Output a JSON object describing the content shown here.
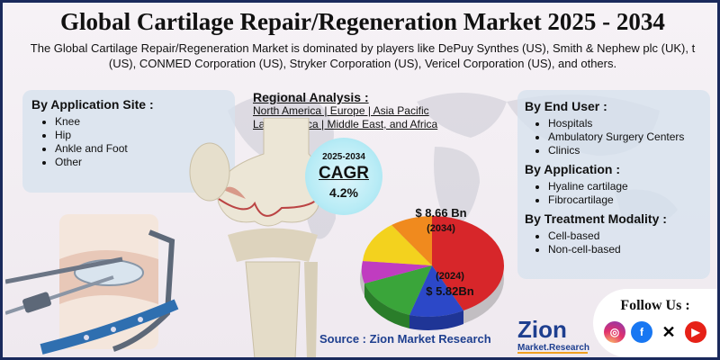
{
  "title": "Global Cartilage Repair/Regeneration Market 2025 - 2034",
  "subtitle": "The Global Cartilage Repair/Regeneration Market is dominated by players like DePuy Synthes (US), Smith & Nephew plc (UK), t (US), CONMED Corporation (US), Stryker Corporation (US), Vericel Corporation (US), and others.",
  "application_site": {
    "heading": "By Application Site :",
    "items": [
      "Knee",
      "Hip",
      "Ankle and Foot",
      "Other"
    ]
  },
  "regional": {
    "heading": "Regional Analysis :",
    "line1": "North America | Europe | Asia Pacific",
    "line2": "Latin America | Middle East, and Africa"
  },
  "cagr": {
    "years": "2025-2034",
    "label": "CAGR",
    "value": "4.2%"
  },
  "market_value": {
    "high": {
      "value": "$ 8.66 Bn",
      "year": "(2034)"
    },
    "low": {
      "year": "(2024)",
      "value": "$ 5.82Bn"
    }
  },
  "end_user": {
    "heading": "By End User :",
    "items": [
      "Hospitals",
      "Ambulatory Surgery Centers",
      "Clinics"
    ]
  },
  "application": {
    "heading": "By Application :",
    "items": [
      "Hyaline cartilage",
      "Fibrocartilage"
    ]
  },
  "treatment": {
    "heading": "By Treatment Modality :",
    "items": [
      "Cell-based",
      "Non-cell-based"
    ]
  },
  "source": "Source : Zion Market Research",
  "logo": {
    "name": "Zion",
    "sub": "Market.Research"
  },
  "follow": {
    "heading": "Follow Us :",
    "icons": [
      "instagram-icon",
      "facebook-icon",
      "x-icon",
      "youtube-icon"
    ]
  },
  "colors": {
    "border": "#1a2a5c",
    "panel": "#d6e2ee",
    "source": "#1e3f8f",
    "pie": [
      "#d7262a",
      "#2c48c8",
      "#3aa53a",
      "#c03cc0",
      "#f3d21e",
      "#f08a1e"
    ]
  }
}
